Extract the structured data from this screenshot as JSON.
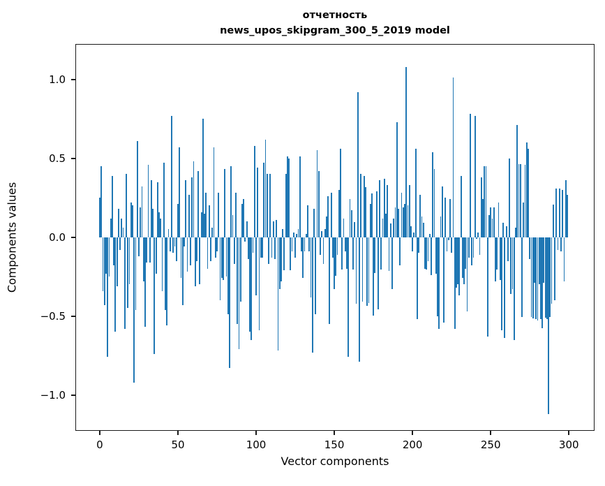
{
  "figure": {
    "title_line1": "отчетность",
    "title_line2": "news_upos_skipgram_300_5_2019 model"
  },
  "chart_data": {
    "type": "bar",
    "title": "отчетность",
    "subtitle": "news_upos_skipgram_300_5_2019 model",
    "xlabel": "Vector components",
    "ylabel": "Components values",
    "grid": false,
    "legend": null,
    "bar_color": "#1f77b4",
    "spine_color": "#1a1a1a",
    "n_bars": 300,
    "x_start": 0,
    "xlim": [
      -15.6,
      316.4
    ],
    "ylim": [
      -1.227,
      1.224
    ],
    "x_ticks": [
      0,
      50,
      100,
      150,
      200,
      250,
      300
    ],
    "x_tick_labels": [
      "0",
      "50",
      "100",
      "150",
      "200",
      "250",
      "300"
    ],
    "y_ticks": [
      1.0,
      0.5,
      0.0,
      -0.5,
      -1.0
    ],
    "y_tick_labels": [
      "1.0",
      "0.5",
      "0.0",
      "−0.5",
      "−1.0"
    ],
    "values": [
      0.25,
      0.45,
      -0.34,
      -0.43,
      -0.23,
      -0.76,
      -0.25,
      0.12,
      0.39,
      -0.18,
      -0.6,
      -0.31,
      0.18,
      -0.08,
      0.12,
      0.06,
      -0.58,
      0.4,
      -0.45,
      -0.3,
      0.22,
      0.2,
      -0.92,
      -0.46,
      0.61,
      -0.12,
      0.19,
      0.32,
      -0.28,
      -0.57,
      -0.16,
      0.46,
      -0.16,
      0.36,
      0.18,
      -0.74,
      -0.23,
      0.35,
      0.16,
      0.12,
      -0.34,
      0.47,
      -0.46,
      -0.56,
      0.05,
      -0.09,
      0.77,
      -0.1,
      -0.06,
      -0.15,
      0.21,
      0.57,
      -0.26,
      -0.43,
      -0.06,
      0.36,
      -0.22,
      0.27,
      -0.18,
      0.38,
      0.48,
      -0.31,
      -0.15,
      0.42,
      -0.3,
      0.16,
      0.75,
      0.15,
      0.28,
      -0.2,
      0.2,
      -0.15,
      0.06,
      0.57,
      -0.13,
      -0.09,
      0.28,
      -0.4,
      -0.26,
      -0.27,
      0.43,
      -0.25,
      -0.49,
      -0.83,
      0.45,
      0.14,
      -0.17,
      0.28,
      -0.55,
      -0.71,
      -0.41,
      0.21,
      0.24,
      -0.03,
      0.1,
      -0.14,
      -0.6,
      -0.65,
      -0.1,
      0.58,
      -0.37,
      0.44,
      -0.59,
      -0.13,
      -0.13,
      0.47,
      0.62,
      0.4,
      -0.17,
      0.4,
      -0.13,
      0.1,
      -0.14,
      0.11,
      -0.72,
      -0.33,
      -0.28,
      0.05,
      -0.21,
      0.4,
      0.51,
      0.5,
      -0.21,
      -0.09,
      0.03,
      -0.13,
      0.02,
      0.05,
      0.51,
      -0.09,
      -0.26,
      -0.09,
      0.02,
      0.2,
      -0.09,
      -0.38,
      -0.73,
      0.18,
      -0.49,
      0.55,
      0.42,
      -0.11,
      0.04,
      -0.17,
      0.05,
      0.13,
      0.26,
      -0.55,
      0.28,
      -0.13,
      -0.33,
      -0.245,
      -0.11,
      0.3,
      0.56,
      -0.205,
      0.12,
      -0.09,
      -0.2,
      -0.76,
      0.24,
      0.17,
      -0.205,
      0.095,
      -0.42,
      0.92,
      -0.79,
      0.4,
      -0.41,
      0.39,
      0.315,
      -0.434,
      -0.418,
      0.213,
      0.276,
      -0.497,
      -0.229,
      0.292,
      -0.457,
      0.363,
      -0.205,
      0.118,
      0.37,
      0.15,
      0.33,
      -0.213,
      0.087,
      -0.33,
      0.118,
      0.19,
      0.73,
      0.18,
      -0.18,
      0.28,
      0.19,
      0.21,
      1.08,
      0.2,
      0.33,
      0.07,
      -0.09,
      0.03,
      0.56,
      -0.52,
      -0.1,
      0.27,
      0.13,
      0.09,
      -0.2,
      -0.205,
      -0.15,
      0.02,
      -0.24,
      0.54,
      0.43,
      -0.23,
      -0.5,
      -0.58,
      0.13,
      0.32,
      -0.54,
      0.25,
      -0.09,
      -0.02,
      0.24,
      -0.1,
      1.01,
      -0.58,
      -0.32,
      -0.3,
      -0.37,
      0.39,
      -0.26,
      -0.3,
      -0.2,
      -0.47,
      -0.13,
      0.78,
      -0.18,
      -0.13,
      0.77,
      -0.01,
      0.03,
      -0.11,
      0.38,
      0.24,
      0.45,
      0.45,
      -0.63,
      0.14,
      0.19,
      0.12,
      0.19,
      -0.28,
      -0.205,
      0.22,
      -0.27,
      -0.59,
      0.09,
      -0.64,
      0.07,
      -0.15,
      0.5,
      -0.36,
      -0.33,
      -0.65,
      0.06,
      0.71,
      0.465,
      0.465,
      -0.505,
      0.22,
      0.46,
      0.6,
      0.56,
      -0.14,
      -0.505,
      -0.513,
      -0.29,
      -0.52,
      -0.53,
      -0.3,
      -0.52,
      -0.575,
      -0.29,
      -0.51,
      -0.52,
      -1.12,
      -0.505,
      -0.42,
      0.205,
      -0.4,
      0.31,
      -0.08,
      0.31,
      -0.09,
      0.3,
      -0.28,
      0.36,
      0.27
    ]
  }
}
